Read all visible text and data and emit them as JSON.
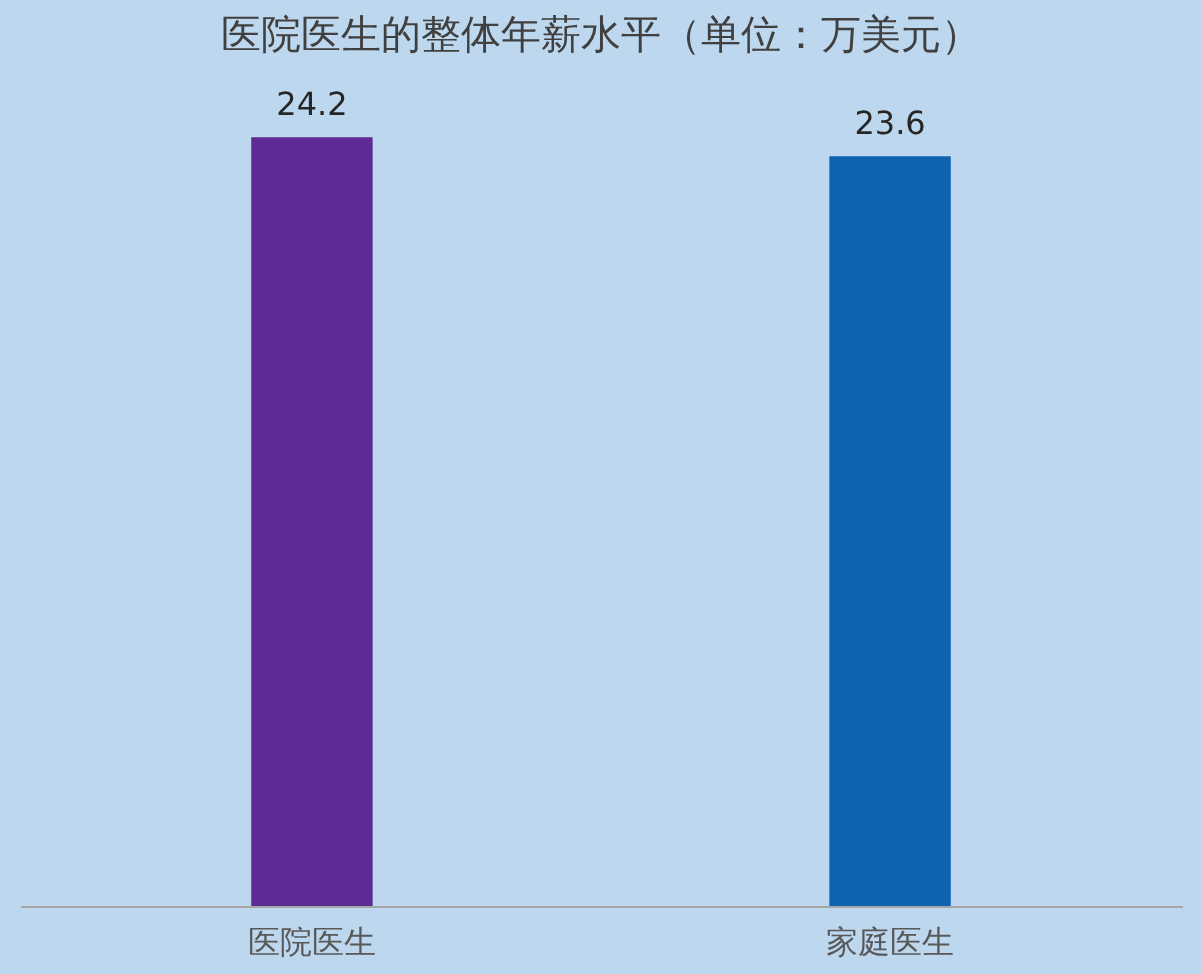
{
  "chart_data": {
    "type": "bar",
    "title": "医院医生的整体年薪水平（单位：万美元）",
    "categories": [
      "医院医生",
      "家庭医生"
    ],
    "values": [
      24.2,
      23.6
    ],
    "colors": [
      "#5e2a93",
      "#0f62b0"
    ],
    "tick_labels": "x",
    "data_labels": true,
    "grid": false
  }
}
